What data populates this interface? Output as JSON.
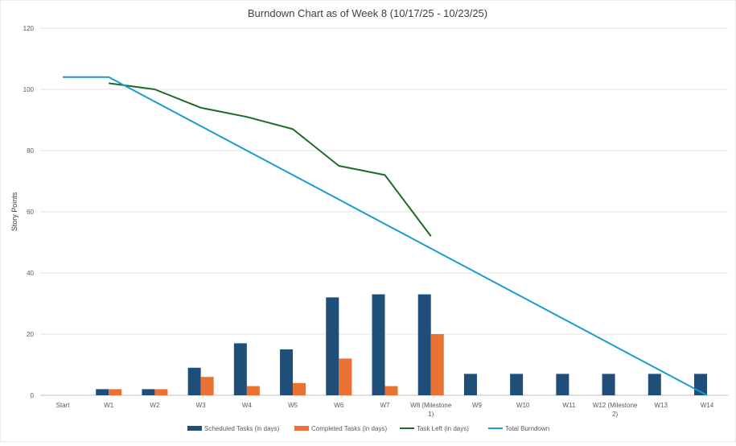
{
  "chart_data": {
    "type": "bar",
    "title": "Burndown Chart as of Week 8 (10/17/25 - 10/23/25)",
    "xlabel": "",
    "ylabel": "Story Points",
    "ylim": [
      0,
      120
    ],
    "yticks": [
      0,
      20,
      40,
      60,
      80,
      100,
      120
    ],
    "grid": true,
    "legend_position": "bottom",
    "categories": [
      "Start",
      "W1",
      "W2",
      "W3",
      "W4",
      "W5",
      "W6",
      "W7",
      "W8 (Milestone 1)",
      "W9",
      "W10",
      "W11",
      "W12 (Milestone 2)",
      "W13",
      "W14"
    ],
    "category_lines": [
      [
        "Start"
      ],
      [
        "W1"
      ],
      [
        "W2"
      ],
      [
        "W3"
      ],
      [
        "W4"
      ],
      [
        "W5"
      ],
      [
        "W6"
      ],
      [
        "W7"
      ],
      [
        "W8 (Milestone",
        "1)"
      ],
      [
        "W9"
      ],
      [
        "W10"
      ],
      [
        "W11"
      ],
      [
        "W12 (Milestone",
        "2)"
      ],
      [
        "W13"
      ],
      [
        "W14"
      ]
    ],
    "series": [
      {
        "name": "Scheduled Tasks (in days)",
        "kind": "bar",
        "color": "#1f4e79",
        "values": [
          null,
          2,
          2,
          9,
          17,
          15,
          32,
          33,
          33,
          7,
          7,
          7,
          7,
          7,
          7
        ]
      },
      {
        "name": "Completed Tasks (in days)",
        "kind": "bar",
        "color": "#e97132",
        "values": [
          null,
          2,
          2,
          6,
          3,
          4,
          12,
          3,
          20,
          null,
          null,
          null,
          null,
          null,
          null
        ]
      },
      {
        "name": "Task Left (in days)",
        "kind": "line",
        "color": "#1e6b24",
        "values": [
          null,
          102,
          100,
          94,
          91,
          87,
          75,
          72,
          52,
          null,
          null,
          null,
          null,
          null,
          null
        ]
      },
      {
        "name": "Total Burndown",
        "kind": "line",
        "color": "#1b9bd1",
        "values": [
          104,
          104,
          96,
          88,
          80,
          72,
          64,
          56,
          48,
          40,
          32,
          24,
          16,
          8,
          0
        ]
      }
    ]
  }
}
